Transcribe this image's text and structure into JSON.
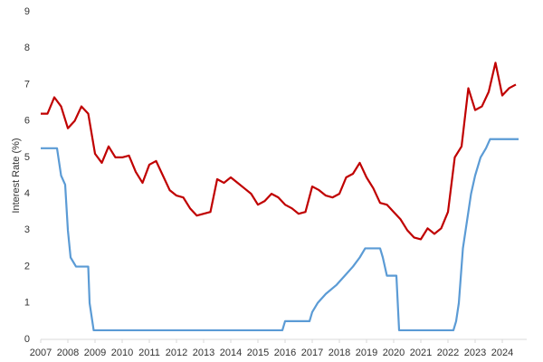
{
  "chart_data": {
    "type": "line",
    "y_label": "Interest Rate (%)",
    "xlim": [
      2007,
      2024.9
    ],
    "xticks": [
      2007,
      2008,
      2009,
      2010,
      2011,
      2012,
      2013,
      2014,
      2015,
      2016,
      2017,
      2018,
      2019,
      2020,
      2021,
      2022,
      2023,
      2024
    ],
    "ylim": [
      0,
      9
    ],
    "yticks": [
      0,
      1,
      2,
      3,
      4,
      5,
      6,
      7,
      8,
      9
    ],
    "grid": false,
    "series": [
      {
        "color": "#c00000",
        "x": [
          2007.0,
          2007.25,
          2007.5,
          2007.75,
          2008.0,
          2008.25,
          2008.5,
          2008.75,
          2009.0,
          2009.25,
          2009.5,
          2009.75,
          2010.0,
          2010.25,
          2010.5,
          2010.75,
          2011.0,
          2011.25,
          2011.5,
          2011.75,
          2012.0,
          2012.25,
          2012.5,
          2012.75,
          2013.0,
          2013.25,
          2013.5,
          2013.75,
          2014.0,
          2014.25,
          2014.5,
          2014.75,
          2015.0,
          2015.25,
          2015.5,
          2015.75,
          2016.0,
          2016.25,
          2016.5,
          2016.75,
          2017.0,
          2017.25,
          2017.5,
          2017.75,
          2018.0,
          2018.25,
          2018.5,
          2018.75,
          2019.0,
          2019.25,
          2019.5,
          2019.75,
          2020.0,
          2020.25,
          2020.5,
          2020.75,
          2021.0,
          2021.25,
          2021.5,
          2021.75,
          2022.0,
          2022.25,
          2022.5,
          2022.75,
          2023.0,
          2023.25,
          2023.5,
          2023.75,
          2024.0,
          2024.25,
          2024.5
        ],
        "values": [
          6.2,
          6.2,
          6.65,
          6.4,
          5.8,
          6.0,
          6.4,
          6.2,
          5.1,
          4.85,
          5.3,
          5.0,
          5.0,
          5.05,
          4.6,
          4.3,
          4.8,
          4.9,
          4.5,
          4.1,
          3.95,
          3.9,
          3.6,
          3.4,
          3.45,
          3.5,
          4.4,
          4.3,
          4.45,
          4.3,
          4.15,
          4.0,
          3.7,
          3.8,
          4.0,
          3.9,
          3.7,
          3.6,
          3.45,
          3.5,
          4.2,
          4.1,
          3.95,
          3.9,
          4.0,
          4.45,
          4.55,
          4.85,
          4.45,
          4.15,
          3.75,
          3.7,
          3.5,
          3.3,
          3.0,
          2.8,
          2.75,
          3.05,
          2.9,
          3.05,
          3.5,
          5.0,
          5.3,
          6.9,
          6.3,
          6.4,
          6.8,
          7.6,
          6.7,
          6.9,
          7.0
        ]
      },
      {
        "color": "#5b9bd5",
        "x": [
          2007.0,
          2007.6,
          2007.75,
          2007.9,
          2008.0,
          2008.1,
          2008.3,
          2008.75,
          2008.8,
          2008.95,
          2015.9,
          2016.0,
          2016.9,
          2017.0,
          2017.2,
          2017.5,
          2017.9,
          2018.2,
          2018.5,
          2018.75,
          2018.95,
          2019.5,
          2019.6,
          2019.75,
          2020.1,
          2020.2,
          2022.2,
          2022.3,
          2022.4,
          2022.55,
          2022.7,
          2022.85,
          2023.0,
          2023.2,
          2023.4,
          2023.55,
          2024.6
        ],
        "values": [
          5.25,
          5.25,
          4.5,
          4.25,
          3.0,
          2.25,
          2.0,
          2.0,
          1.0,
          0.25,
          0.25,
          0.5,
          0.5,
          0.75,
          1.0,
          1.25,
          1.5,
          1.75,
          2.0,
          2.25,
          2.5,
          2.5,
          2.25,
          1.75,
          1.75,
          0.25,
          0.25,
          0.5,
          1.0,
          2.5,
          3.25,
          4.0,
          4.5,
          5.0,
          5.25,
          5.5,
          5.5
        ]
      }
    ]
  }
}
